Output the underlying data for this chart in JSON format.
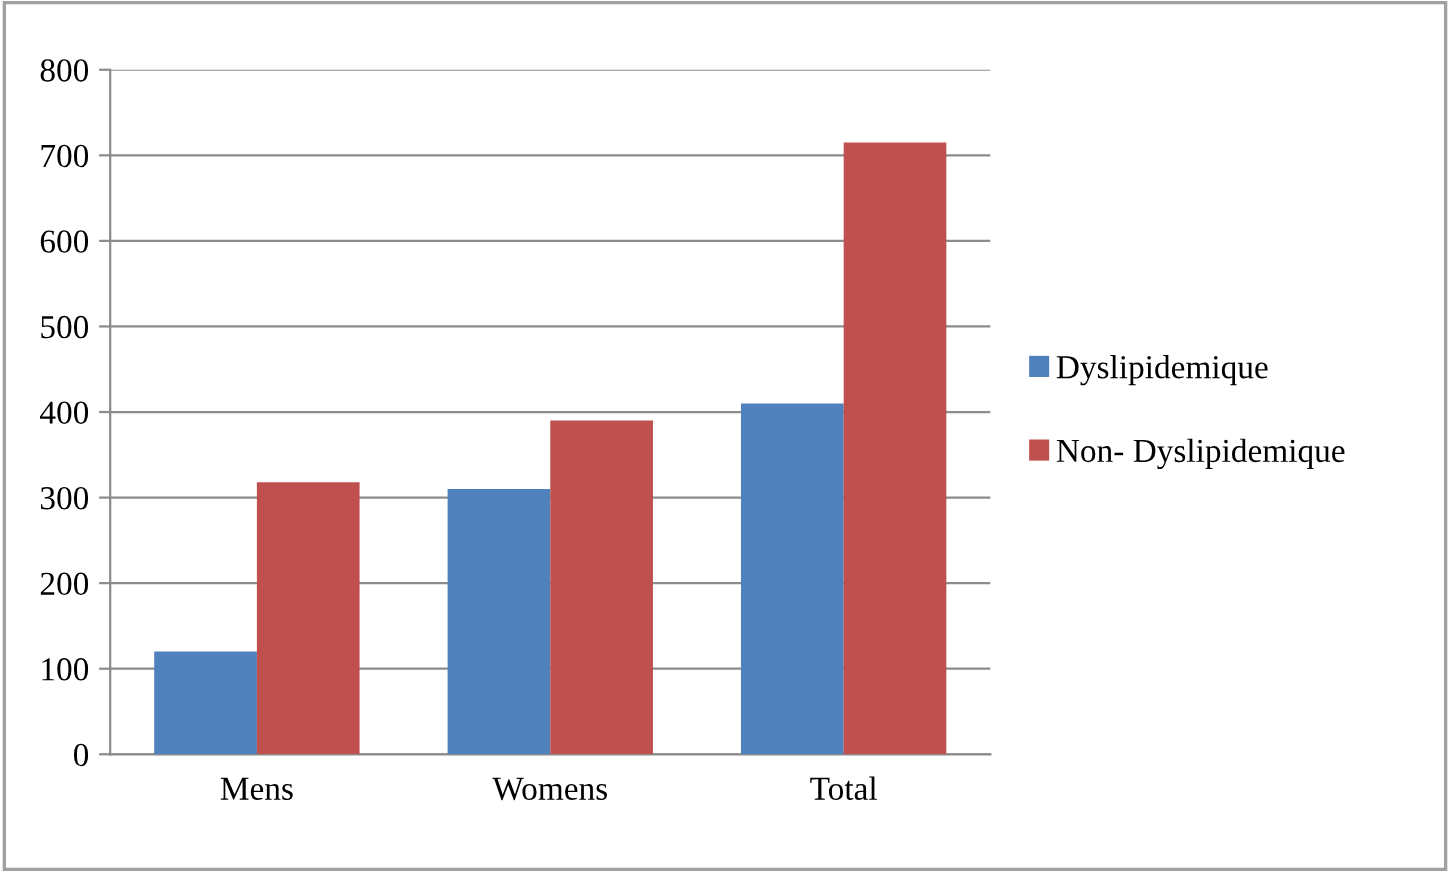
{
  "chart_data": {
    "type": "bar",
    "categories": [
      "Mens",
      "Womens",
      "Total"
    ],
    "series": [
      {
        "name": "Dyslipidemique",
        "color": "#4f81bd",
        "values": [
          120,
          310,
          410
        ]
      },
      {
        "name": "Non- Dyslipidemique",
        "color": "#c0504d",
        "values": [
          318,
          390,
          715
        ]
      }
    ],
    "ylim": [
      0,
      800
    ],
    "yticks": [
      0,
      100,
      200,
      300,
      400,
      500,
      600,
      700,
      800
    ],
    "grid": "y",
    "legend": "right"
  }
}
